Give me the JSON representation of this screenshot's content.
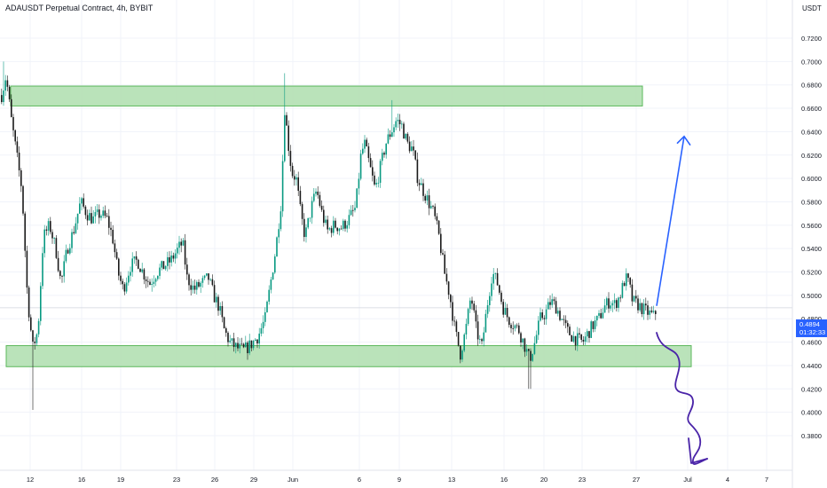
{
  "chart_data": {
    "type": "candlestick",
    "title": "ADAUSDT Perpetual Contract, 4h, BYBIT",
    "currency": "USDT",
    "ylim": [
      0.372,
      0.732
    ],
    "y_ticks": [
      "0.7200",
      "0.7000",
      "0.6800",
      "0.6600",
      "0.6400",
      "0.6200",
      "0.6000",
      "0.5800",
      "0.5600",
      "0.5400",
      "0.5200",
      "0.5000",
      "0.4800",
      "0.4600",
      "0.4400",
      "0.4200",
      "0.4000",
      "0.3800"
    ],
    "x_ticks": [
      "12",
      "16",
      "19",
      "23",
      "26",
      "29",
      "Jun",
      "6",
      "9",
      "13",
      "16",
      "20",
      "23",
      "27",
      "Jul",
      "4",
      "7"
    ],
    "last_price": "0.4894",
    "countdown": "01:32:33",
    "zones": [
      {
        "name": "resistance",
        "low": 0.662,
        "high": 0.679
      },
      {
        "name": "support",
        "low": 0.439,
        "high": 0.457
      }
    ],
    "price_path": [
      [
        0,
        0.668
      ],
      [
        6,
        0.688
      ],
      [
        12,
        0.65
      ],
      [
        18,
        0.62
      ],
      [
        24,
        0.59
      ],
      [
        30,
        0.5
      ],
      [
        36,
        0.455
      ],
      [
        42,
        0.47
      ],
      [
        48,
        0.55
      ],
      [
        55,
        0.56
      ],
      [
        62,
        0.54
      ],
      [
        68,
        0.51
      ],
      [
        75,
        0.54
      ],
      [
        82,
        0.555
      ],
      [
        90,
        0.58
      ],
      [
        97,
        0.57
      ],
      [
        104,
        0.565
      ],
      [
        112,
        0.57
      ],
      [
        120,
        0.565
      ],
      [
        126,
        0.55
      ],
      [
        132,
        0.52
      ],
      [
        138,
        0.505
      ],
      [
        146,
        0.525
      ],
      [
        154,
        0.53
      ],
      [
        160,
        0.52
      ],
      [
        168,
        0.51
      ],
      [
        176,
        0.52
      ],
      [
        184,
        0.525
      ],
      [
        192,
        0.53
      ],
      [
        200,
        0.54
      ],
      [
        205,
        0.545
      ],
      [
        210,
        0.515
      ],
      [
        218,
        0.505
      ],
      [
        226,
        0.51
      ],
      [
        234,
        0.515
      ],
      [
        240,
        0.5
      ],
      [
        246,
        0.49
      ],
      [
        252,
        0.47
      ],
      [
        258,
        0.46
      ],
      [
        266,
        0.455
      ],
      [
        274,
        0.453
      ],
      [
        282,
        0.458
      ],
      [
        290,
        0.465
      ],
      [
        298,
        0.48
      ],
      [
        304,
        0.51
      ],
      [
        310,
        0.54
      ],
      [
        316,
        0.58
      ],
      [
        320,
        0.66
      ],
      [
        324,
        0.63
      ],
      [
        328,
        0.605
      ],
      [
        333,
        0.6
      ],
      [
        338,
        0.57
      ],
      [
        343,
        0.55
      ],
      [
        350,
        0.575
      ],
      [
        356,
        0.59
      ],
      [
        362,
        0.57
      ],
      [
        368,
        0.555
      ],
      [
        376,
        0.56
      ],
      [
        384,
        0.558
      ],
      [
        392,
        0.565
      ],
      [
        400,
        0.575
      ],
      [
        406,
        0.62
      ],
      [
        410,
        0.63
      ],
      [
        416,
        0.61
      ],
      [
        422,
        0.59
      ],
      [
        428,
        0.61
      ],
      [
        434,
        0.63
      ],
      [
        440,
        0.64
      ],
      [
        446,
        0.65
      ],
      [
        452,
        0.645
      ],
      [
        458,
        0.63
      ],
      [
        464,
        0.625
      ],
      [
        470,
        0.6
      ],
      [
        476,
        0.59
      ],
      [
        482,
        0.58
      ],
      [
        488,
        0.57
      ],
      [
        494,
        0.55
      ],
      [
        500,
        0.52
      ],
      [
        506,
        0.5
      ],
      [
        512,
        0.47
      ],
      [
        518,
        0.45
      ],
      [
        524,
        0.47
      ],
      [
        530,
        0.5
      ],
      [
        536,
        0.47
      ],
      [
        542,
        0.455
      ],
      [
        548,
        0.49
      ],
      [
        554,
        0.52
      ],
      [
        560,
        0.51
      ],
      [
        566,
        0.49
      ],
      [
        572,
        0.48
      ],
      [
        578,
        0.475
      ],
      [
        584,
        0.47
      ],
      [
        590,
        0.458
      ],
      [
        596,
        0.445
      ],
      [
        602,
        0.46
      ],
      [
        608,
        0.48
      ],
      [
        614,
        0.485
      ],
      [
        620,
        0.495
      ],
      [
        626,
        0.49
      ],
      [
        632,
        0.48
      ],
      [
        638,
        0.47
      ],
      [
        644,
        0.465
      ],
      [
        650,
        0.462
      ],
      [
        656,
        0.46
      ],
      [
        662,
        0.468
      ],
      [
        668,
        0.475
      ],
      [
        674,
        0.48
      ],
      [
        680,
        0.49
      ],
      [
        686,
        0.495
      ],
      [
        692,
        0.492
      ],
      [
        698,
        0.5
      ],
      [
        704,
        0.515
      ],
      [
        708,
        0.51
      ],
      [
        712,
        0.495
      ],
      [
        718,
        0.492
      ],
      [
        724,
        0.488
      ],
      [
        730,
        0.485
      ],
      [
        736,
        0.482
      ],
      [
        740,
        0.489
      ]
    ],
    "annotations": [
      {
        "name": "bullish-arrow",
        "color": "#2962ff",
        "from": [
          740,
          0.491
        ],
        "to": [
          771,
          0.636
        ]
      },
      {
        "name": "bearish-squiggle",
        "color": "#4a24a8"
      }
    ],
    "colors": {
      "up": "#089981",
      "down": "#1a1a1a",
      "zone": "#b2e0b2",
      "zone_border": "#5cb85c",
      "badge": "#2962ff"
    }
  }
}
